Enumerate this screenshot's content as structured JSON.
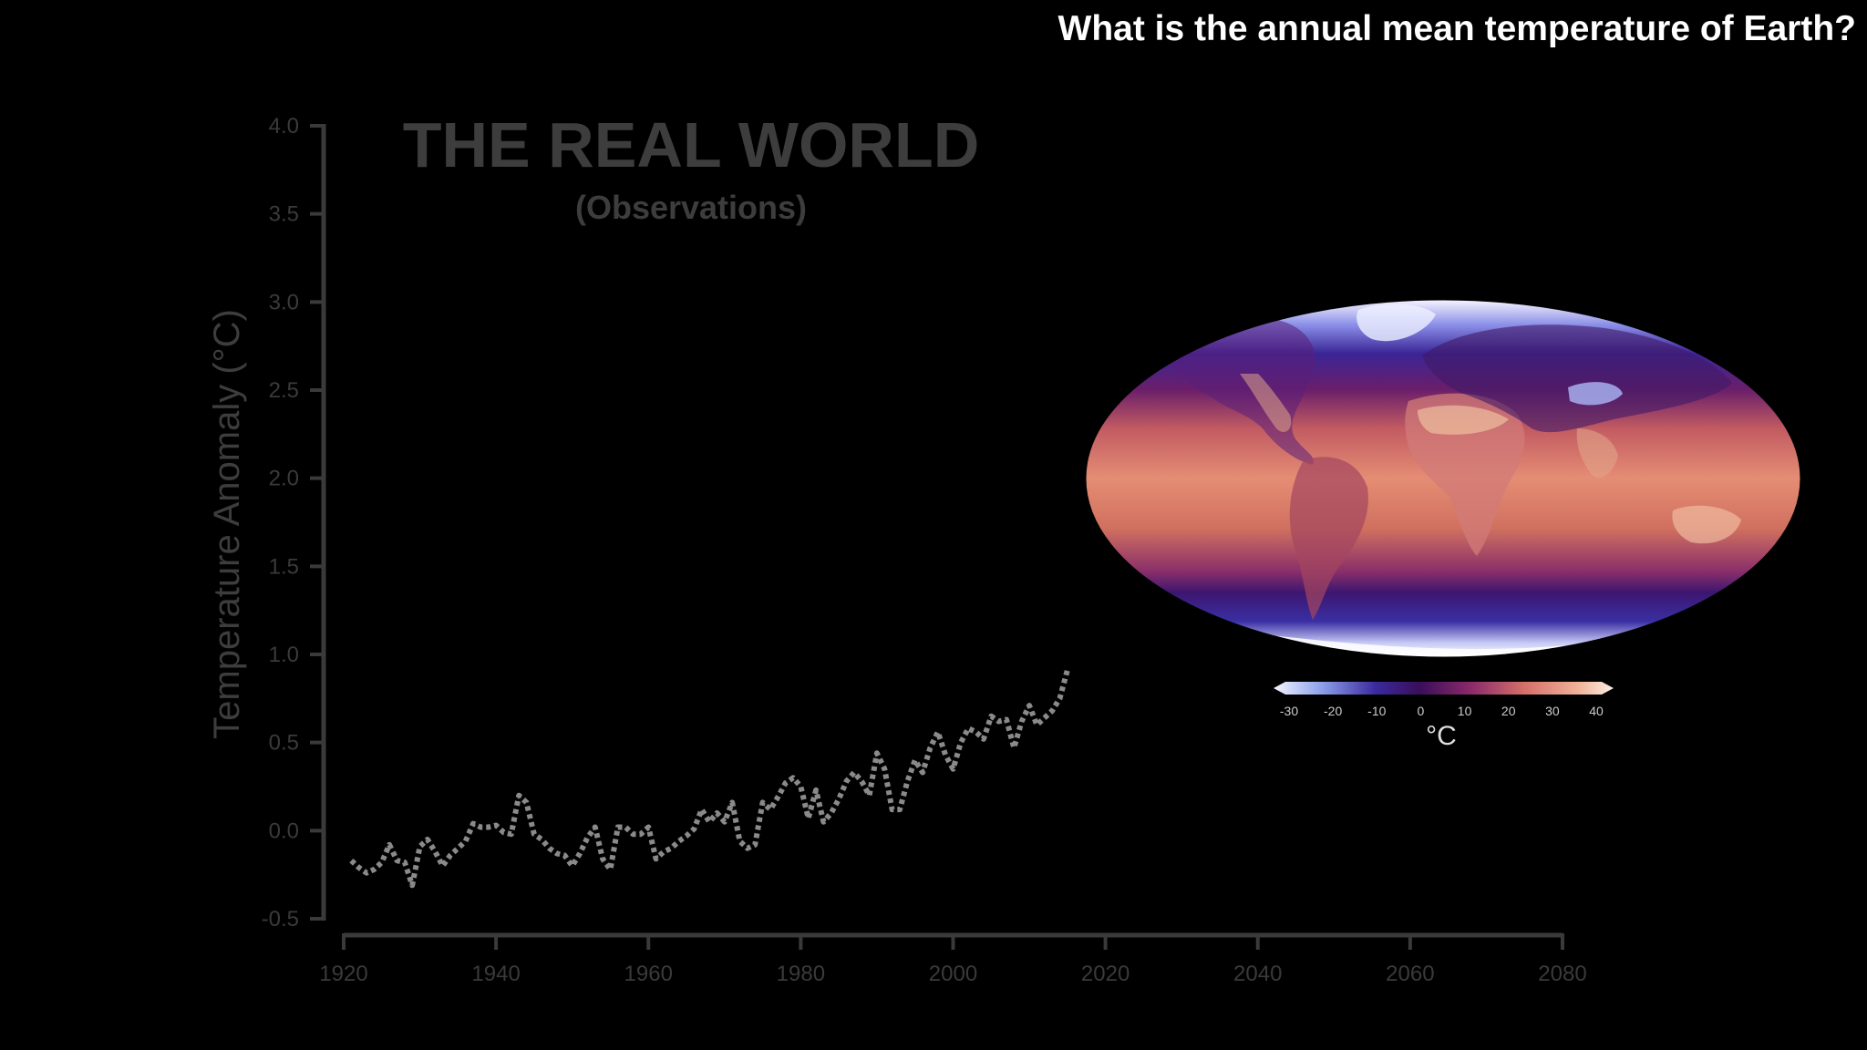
{
  "header": {
    "question": "What is the annual mean temperature of Earth?"
  },
  "chart_data": [
    {
      "type": "line",
      "title": "THE REAL WORLD",
      "subtitle": "(Observations)",
      "xlabel": "",
      "ylabel": "Temperature Anomaly (°C)",
      "xlim": [
        1920,
        2080
      ],
      "ylim": [
        -0.5,
        4.0
      ],
      "x_ticks": [
        "1920",
        "1940",
        "1960",
        "1980",
        "2000",
        "2020",
        "2040",
        "2060",
        "2080"
      ],
      "y_ticks": [
        "4.0",
        "3.5",
        "3.0",
        "2.5",
        "2.0",
        "1.5",
        "1.0",
        "0.5",
        "0.0",
        "-0.5"
      ],
      "line_style": "dotted",
      "line_color": "#8a8a8a",
      "axis_color": "#3a3a3a",
      "grid": false,
      "series": [
        {
          "x": [
            1921,
            1922,
            1923,
            1924,
            1925,
            1926,
            1927,
            1928,
            1929,
            1930,
            1931,
            1932,
            1933,
            1934,
            1935,
            1936,
            1937,
            1938,
            1939,
            1940,
            1941,
            1942,
            1943,
            1944,
            1945,
            1946,
            1947,
            1948,
            1949,
            1950,
            1951,
            1952,
            1953,
            1954,
            1955,
            1956,
            1957,
            1958,
            1959,
            1960,
            1961,
            1962,
            1963,
            1964,
            1965,
            1966,
            1967,
            1968,
            1969,
            1970,
            1971,
            1972,
            1973,
            1974,
            1975,
            1976,
            1977,
            1978,
            1979,
            1980,
            1981,
            1982,
            1983,
            1984,
            1985,
            1986,
            1987,
            1988,
            1989,
            1990,
            1991,
            1992,
            1993,
            1994,
            1995,
            1996,
            1997,
            1998,
            1999,
            2000,
            2001,
            2002,
            2003,
            2004,
            2005,
            2006,
            2007,
            2008,
            2009,
            2010,
            2011,
            2012,
            2013,
            2014,
            2015
          ],
          "y": [
            -0.17,
            -0.21,
            -0.24,
            -0.22,
            -0.18,
            -0.08,
            -0.17,
            -0.18,
            -0.31,
            -0.09,
            -0.05,
            -0.12,
            -0.2,
            -0.14,
            -0.1,
            -0.06,
            0.04,
            0.02,
            0.02,
            0.03,
            -0.01,
            -0.02,
            0.2,
            0.16,
            -0.02,
            -0.05,
            -0.1,
            -0.13,
            -0.14,
            -0.2,
            -0.13,
            -0.04,
            0.02,
            -0.16,
            -0.22,
            0.02,
            0.02,
            -0.02,
            -0.02,
            0.02,
            -0.16,
            -0.12,
            -0.1,
            -0.06,
            -0.03,
            0.01,
            0.12,
            0.05,
            0.1,
            0.05,
            0.16,
            -0.06,
            -0.1,
            -0.08,
            0.16,
            0.12,
            0.19,
            0.27,
            0.3,
            0.25,
            0.07,
            0.23,
            0.05,
            0.1,
            0.18,
            0.28,
            0.33,
            0.28,
            0.2,
            0.44,
            0.35,
            0.12,
            0.12,
            0.28,
            0.4,
            0.33,
            0.47,
            0.56,
            0.43,
            0.35,
            0.5,
            0.58,
            0.56,
            0.52,
            0.65,
            0.62,
            0.63,
            0.47,
            0.62,
            0.71,
            0.6,
            0.64,
            0.68,
            0.75,
            0.91
          ]
        }
      ]
    }
  ],
  "map": {
    "name": "Annual mean temperature map (Mollweide projection)",
    "colorbar_ticks": [
      "-30",
      "-20",
      "-10",
      "0",
      "10",
      "20",
      "30",
      "40"
    ],
    "colorbar_unit": "°C",
    "colors": {
      "cold_extreme": "#f4f6ff",
      "cold": "#8ea0ea",
      "cool": "#3b2a9e",
      "zero": "#3a0e5a",
      "mild": "#8a2a6a",
      "warm": "#d6706a",
      "hot": "#f0b49a",
      "hot_extreme": "#fbeee6"
    }
  }
}
